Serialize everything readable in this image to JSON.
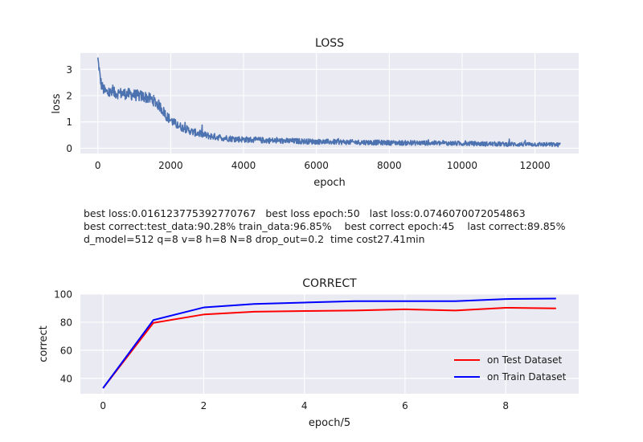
{
  "chart_data": [
    {
      "type": "line",
      "title": "LOSS",
      "xlabel": "epoch",
      "ylabel": "loss",
      "xlim": [
        -480,
        13200
      ],
      "ylim": [
        -0.2,
        3.62
      ],
      "xticks": [
        0,
        2000,
        4000,
        6000,
        8000,
        10000,
        12000
      ],
      "yticks": [
        0,
        1,
        2,
        3
      ],
      "grid": true,
      "series": [
        {
          "color": "#4c72b0",
          "trend": {
            "x": [
              0,
              30,
              60,
              100,
              150,
              200,
              300,
              500,
              700,
              900,
              1100,
              1300,
              1500,
              1700,
              1900,
              2100,
              2300,
              2600,
              3000,
              3400,
              3800,
              4200,
              4600,
              5000,
              5500,
              6000,
              6500,
              7000,
              7500,
              8000,
              8500,
              9000,
              9500,
              10000,
              10500,
              11000,
              11500,
              12000,
              12400,
              12700
            ],
            "y": [
              3.45,
              3.1,
              2.7,
              2.4,
              2.25,
              2.15,
              2.1,
              2.1,
              2.08,
              2.05,
              2.0,
              1.95,
              1.85,
              1.6,
              1.2,
              0.95,
              0.8,
              0.62,
              0.48,
              0.4,
              0.35,
              0.32,
              0.3,
              0.28,
              0.27,
              0.25,
              0.24,
              0.23,
              0.22,
              0.21,
              0.2,
              0.2,
              0.19,
              0.18,
              0.17,
              0.16,
              0.15,
              0.15,
              0.14,
              0.13
            ]
          },
          "noise": {
            "x": [
              0,
              200,
              1300,
              1800,
              2400,
              3500,
              6000,
              9000,
              12700
            ],
            "amplitude": [
              0.2,
              0.22,
              0.22,
              0.2,
              0.15,
              0.12,
              0.1,
              0.09,
              0.08
            ]
          }
        }
      ]
    },
    {
      "type": "line",
      "title": "CORRECT",
      "xlabel": "epoch/5",
      "ylabel": "correct",
      "xlim": [
        -0.45,
        9.45
      ],
      "ylim": [
        29,
        100
      ],
      "xticks": [
        0,
        2,
        4,
        6,
        8
      ],
      "yticks": [
        40,
        60,
        80,
        100
      ],
      "grid": true,
      "legend": "lower-right",
      "x": [
        0,
        1,
        2,
        3,
        4,
        5,
        6,
        7,
        8,
        9
      ],
      "series": [
        {
          "name": "on Test Dataset",
          "color": "#ff0000",
          "values": [
            33,
            79.5,
            85.5,
            87.5,
            88,
            88.3,
            89.2,
            88.3,
            90.3,
            89.85
          ]
        },
        {
          "name": "on Train Dataset",
          "color": "#0000ff",
          "values": [
            33,
            81.5,
            90.5,
            93,
            94,
            95,
            95,
            95,
            96.5,
            96.85
          ]
        }
      ]
    }
  ],
  "info": {
    "line1": "best loss:0.016123775392770767   best loss epoch:50   last loss:0.0746070072054863",
    "line2": "best correct:test_data:90.28% train_data:96.85%    best correct epoch:45    last correct:89.85%",
    "line3": "d_model=512 q=8 v=8 h=8 N=8 drop_out=0.2  time cost27.41min"
  }
}
